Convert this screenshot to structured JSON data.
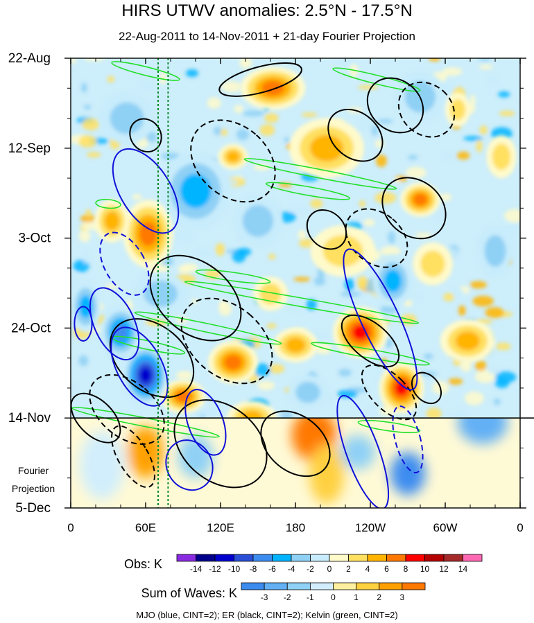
{
  "chart_data": {
    "type": "heatmap",
    "title": "HIRS UTWV anomalies: 2.5°N - 17.5°N",
    "subtitle": "22-Aug-2011 to 14-Nov-2011 + 21-day Fourier Projection",
    "x_axis": {
      "variable": "longitude",
      "range_deg_east": [
        0,
        360
      ],
      "ticks": [
        {
          "lon": 0,
          "label": "0"
        },
        {
          "lon": 60,
          "label": "60E"
        },
        {
          "lon": 120,
          "label": "120E"
        },
        {
          "lon": 180,
          "label": "180"
        },
        {
          "lon": 240,
          "label": "120W"
        },
        {
          "lon": 300,
          "label": "60W"
        },
        {
          "lon": 360,
          "label": "0"
        }
      ]
    },
    "y_axis": {
      "variable": "time",
      "range_days": [
        0,
        105
      ],
      "direction": "downward",
      "ticks": [
        {
          "day": 0,
          "label": "22-Aug"
        },
        {
          "day": 21,
          "label": "12-Sep"
        },
        {
          "day": 42,
          "label": "3-Oct"
        },
        {
          "day": 63,
          "label": "24-Oct"
        },
        {
          "day": 84,
          "label": "14-Nov"
        },
        {
          "day": 105,
          "label": "5-Dec"
        }
      ],
      "minor_tick_days": 7
    },
    "projection_label": [
      "Fourier",
      "Projection"
    ],
    "observation_end_day": 84,
    "reference_lines_lon": [
      70,
      78
    ],
    "obs_colorbar": {
      "label": "Obs: K",
      "levels": [
        -14,
        -12,
        -10,
        -8,
        -6,
        -4,
        -2,
        0,
        2,
        4,
        6,
        8,
        10,
        12,
        14
      ],
      "colors": [
        "#8a2be2",
        "#00008b",
        "#0000cd",
        "#2a4fd6",
        "#3c8cf0",
        "#00b4ff",
        "#8fd0f5",
        "#c8ecfb",
        "#fffaca",
        "#ffe060",
        "#ffb400",
        "#ff7800",
        "#ff0000",
        "#b40000",
        "#a52a2a",
        "#ff69b4"
      ]
    },
    "waves_colorbar": {
      "label": "Sum of Waves: K",
      "levels": [
        -3,
        -2,
        -1,
        0,
        1,
        2,
        3
      ],
      "colors": [
        "#3c8cf0",
        "#63b0f5",
        "#8fd0f5",
        "#d2eefc",
        "#fff0a0",
        "#ffd040",
        "#ffa000",
        "#ff7800"
      ]
    },
    "footer": "MJO (blue, CINT=2); ER (black, CINT=2); Kelvin (green, CINT=2)",
    "wave_contours": {
      "mjo": {
        "color": "blue",
        "cint": 2,
        "features": [
          {
            "lon": 60,
            "day": 31,
            "rx_deg": 20,
            "ry_days": 11,
            "tilt": -32,
            "sign": "pos"
          },
          {
            "lon": 43,
            "day": 48,
            "rx_deg": 16,
            "ry_days": 8,
            "tilt": -30,
            "sign": "neg"
          },
          {
            "lon": 35,
            "day": 62,
            "rx_deg": 16,
            "ry_days": 9,
            "tilt": -25,
            "sign": "pos"
          },
          {
            "lon": 55,
            "day": 72,
            "rx_deg": 18,
            "ry_days": 10,
            "tilt": -28,
            "sign": "pos"
          },
          {
            "lon": 108,
            "day": 85,
            "rx_deg": 14,
            "ry_days": 8,
            "tilt": -20,
            "sign": "pos"
          },
          {
            "lon": 248,
            "day": 61,
            "rx_deg": 15,
            "ry_days": 18,
            "tilt": -25,
            "sign": "pos"
          },
          {
            "lon": 234,
            "day": 92,
            "rx_deg": 13,
            "ry_days": 14,
            "tilt": -20,
            "sign": "pos"
          },
          {
            "lon": 270,
            "day": 89,
            "rx_deg": 10,
            "ry_days": 8,
            "tilt": -15,
            "sign": "neg"
          },
          {
            "lon": 95,
            "day": 95,
            "rx_deg": 18,
            "ry_days": 6,
            "tilt": -30,
            "sign": "pos"
          },
          {
            "lon": 10,
            "day": 62,
            "rx_deg": 7,
            "ry_days": 4,
            "tilt": 0,
            "sign": "pos"
          }
        ]
      },
      "er": {
        "color": "black",
        "cint": 2,
        "features": [
          {
            "lon": 152,
            "day": 5,
            "rx_deg": 34,
            "ry_days": 3,
            "tilt": -15,
            "sign": "pos"
          },
          {
            "lon": 260,
            "day": 11,
            "rx_deg": 20,
            "ry_days": 7,
            "tilt": -48,
            "sign": "pos"
          },
          {
            "lon": 285,
            "day": 12,
            "rx_deg": 20,
            "ry_days": 7,
            "tilt": -48,
            "sign": "neg"
          },
          {
            "lon": 275,
            "day": 35,
            "rx_deg": 22,
            "ry_days": 8,
            "tilt": -50,
            "sign": "pos"
          },
          {
            "lon": 245,
            "day": 42,
            "rx_deg": 20,
            "ry_days": 8,
            "tilt": -50,
            "sign": "neg"
          },
          {
            "lon": 228,
            "day": 18,
            "rx_deg": 18,
            "ry_days": 7,
            "tilt": -50,
            "sign": "pos"
          },
          {
            "lon": 205,
            "day": 40,
            "rx_deg": 14,
            "ry_days": 5,
            "tilt": -45,
            "sign": "pos"
          },
          {
            "lon": 130,
            "day": 24,
            "rx_deg": 28,
            "ry_days": 11,
            "tilt": -48,
            "sign": "neg"
          },
          {
            "lon": 100,
            "day": 56,
            "rx_deg": 28,
            "ry_days": 12,
            "tilt": -50,
            "sign": "pos"
          },
          {
            "lon": 125,
            "day": 66,
            "rx_deg": 28,
            "ry_days": 12,
            "tilt": -50,
            "sign": "neg"
          },
          {
            "lon": 65,
            "day": 70,
            "rx_deg": 26,
            "ry_days": 11,
            "tilt": -50,
            "sign": "pos"
          },
          {
            "lon": 45,
            "day": 82,
            "rx_deg": 22,
            "ry_days": 10,
            "tilt": -50,
            "sign": "neg"
          },
          {
            "lon": 20,
            "day": 84,
            "rx_deg": 14,
            "ry_days": 7,
            "tilt": -45,
            "sign": "pos"
          },
          {
            "lon": 120,
            "day": 90,
            "rx_deg": 30,
            "ry_days": 12,
            "tilt": -50,
            "sign": "pos"
          },
          {
            "lon": 240,
            "day": 66,
            "rx_deg": 14,
            "ry_days": 8,
            "tilt": -50,
            "sign": "pos"
          },
          {
            "lon": 255,
            "day": 78,
            "rx_deg": 14,
            "ry_days": 8,
            "tilt": -45,
            "sign": "neg"
          },
          {
            "lon": 285,
            "day": 77,
            "rx_deg": 10,
            "ry_days": 4,
            "tilt": -40,
            "sign": "pos"
          },
          {
            "lon": 50,
            "day": 93,
            "rx_deg": 12,
            "ry_days": 8,
            "tilt": -30,
            "sign": "neg"
          },
          {
            "lon": 180,
            "day": 90,
            "rx_deg": 22,
            "ry_days": 9,
            "tilt": -50,
            "sign": "pos"
          },
          {
            "lon": 60,
            "day": 18,
            "rx_deg": 12,
            "ry_days": 4,
            "tilt": -35,
            "sign": "pos"
          }
        ]
      },
      "kelvin": {
        "color": "green",
        "cint": 2,
        "features": [
          {
            "lon": 60,
            "day": 3,
            "rx_deg": 28,
            "ry_days": 1,
            "tilt": 14,
            "sign": "pos"
          },
          {
            "lon": 245,
            "day": 5,
            "rx_deg": 36,
            "ry_days": 1,
            "tilt": 14,
            "sign": "pos"
          },
          {
            "lon": 200,
            "day": 27,
            "rx_deg": 62,
            "ry_days": 1,
            "tilt": 11,
            "sign": "pos"
          },
          {
            "lon": 190,
            "day": 31,
            "rx_deg": 34,
            "ry_days": 1,
            "tilt": 10,
            "sign": "pos"
          },
          {
            "lon": 130,
            "day": 51,
            "rx_deg": 30,
            "ry_days": 1,
            "tilt": 8,
            "sign": "pos"
          },
          {
            "lon": 185,
            "day": 57,
            "rx_deg": 95,
            "ry_days": 1,
            "tilt": 10,
            "sign": "pos"
          },
          {
            "lon": 110,
            "day": 63,
            "rx_deg": 60,
            "ry_days": 1,
            "tilt": 12,
            "sign": "pos"
          },
          {
            "lon": 240,
            "day": 69,
            "rx_deg": 48,
            "ry_days": 1,
            "tilt": 10,
            "sign": "pos"
          },
          {
            "lon": 60,
            "day": 85,
            "rx_deg": 60,
            "ry_days": 1,
            "tilt": 11,
            "sign": "pos"
          },
          {
            "lon": 255,
            "day": 86,
            "rx_deg": 25,
            "ry_days": 1,
            "tilt": 8,
            "sign": "pos"
          },
          {
            "lon": 62,
            "day": 67,
            "rx_deg": 30,
            "ry_days": 1,
            "tilt": 12,
            "sign": "pos"
          },
          {
            "lon": 30,
            "day": 34,
            "rx_deg": 10,
            "ry_days": 1,
            "tilt": 5,
            "sign": "pos"
          }
        ]
      }
    },
    "anomaly_blobs": [
      {
        "lon": 162,
        "day": 7,
        "r_deg": 26,
        "r_days": 5,
        "value": 9
      },
      {
        "lon": 130,
        "day": 23,
        "r_deg": 12,
        "r_days": 3,
        "value": 7
      },
      {
        "lon": 205,
        "day": 21,
        "r_deg": 30,
        "r_days": 7,
        "value": 6
      },
      {
        "lon": 280,
        "day": 33,
        "r_deg": 16,
        "r_days": 4,
        "value": 8
      },
      {
        "lon": 218,
        "day": 45,
        "r_deg": 26,
        "r_days": 6,
        "value": 5
      },
      {
        "lon": 62,
        "day": 41,
        "r_deg": 20,
        "r_days": 8,
        "value": 9
      },
      {
        "lon": 33,
        "day": 38,
        "r_deg": 14,
        "r_days": 5,
        "value": 7
      },
      {
        "lon": 72,
        "day": 55,
        "r_deg": 22,
        "r_days": 5,
        "value": -5
      },
      {
        "lon": 232,
        "day": 64,
        "r_deg": 22,
        "r_days": 6,
        "value": 11
      },
      {
        "lon": 265,
        "day": 77,
        "r_deg": 18,
        "r_days": 6,
        "value": 10
      },
      {
        "lon": 130,
        "day": 71,
        "r_deg": 20,
        "r_days": 5,
        "value": 8
      },
      {
        "lon": 180,
        "day": 67,
        "r_deg": 18,
        "r_days": 4,
        "value": 6
      },
      {
        "lon": 195,
        "day": 88,
        "r_deg": 18,
        "r_days": 6,
        "value": 5
      },
      {
        "lon": 318,
        "day": 66,
        "r_deg": 22,
        "r_days": 5,
        "value": 6
      },
      {
        "lon": 90,
        "day": 79,
        "r_deg": 18,
        "r_days": 4,
        "value": 8
      },
      {
        "lon": 145,
        "day": 84,
        "r_deg": 20,
        "r_days": 4,
        "value": 7
      },
      {
        "lon": 60,
        "day": 74,
        "r_deg": 18,
        "r_days": 7,
        "value": -12
      },
      {
        "lon": 40,
        "day": 64,
        "r_deg": 16,
        "r_days": 6,
        "value": -8
      },
      {
        "lon": 258,
        "day": 52,
        "r_deg": 16,
        "r_days": 6,
        "value": -7
      },
      {
        "lon": 270,
        "day": 97,
        "r_deg": 14,
        "r_days": 5,
        "value": -6
      },
      {
        "lon": 280,
        "day": 9,
        "r_deg": 20,
        "r_days": 6,
        "value": -4
      },
      {
        "lon": 45,
        "day": 14,
        "r_deg": 22,
        "r_days": 6,
        "value": -4
      },
      {
        "lon": 100,
        "day": 31,
        "r_deg": 28,
        "r_days": 9,
        "value": -6
      },
      {
        "lon": 150,
        "day": 38,
        "r_deg": 20,
        "r_days": 6,
        "value": -4
      },
      {
        "lon": 340,
        "day": 45,
        "r_deg": 14,
        "r_days": 6,
        "value": -5
      },
      {
        "lon": 12,
        "day": 58,
        "r_deg": 12,
        "r_days": 6,
        "value": -6
      },
      {
        "lon": 330,
        "day": 85,
        "r_deg": 20,
        "r_days": 5,
        "value": -3
      },
      {
        "lon": 190,
        "day": 78,
        "r_deg": 16,
        "r_days": 4,
        "value": -5
      },
      {
        "lon": 290,
        "day": 48,
        "r_deg": 16,
        "r_days": 5,
        "value": 5
      },
      {
        "lon": 160,
        "day": 55,
        "r_deg": 14,
        "r_days": 4,
        "value": 5
      },
      {
        "lon": 345,
        "day": 23,
        "r_deg": 12,
        "r_days": 5,
        "value": 4
      },
      {
        "lon": 310,
        "day": 12,
        "r_deg": 10,
        "r_days": 4,
        "value": 5
      },
      {
        "lon": 60,
        "day": 92,
        "r_deg": 14,
        "r_days": 6,
        "value": 2
      },
      {
        "lon": 100,
        "day": 93,
        "r_deg": 14,
        "r_days": 5,
        "value": -2
      },
      {
        "lon": 205,
        "day": 97,
        "r_deg": 14,
        "r_days": 7,
        "value": 1.5
      },
      {
        "lon": 230,
        "day": 92,
        "r_deg": 14,
        "r_days": 4,
        "value": -1.5
      },
      {
        "lon": 25,
        "day": 95,
        "r_deg": 18,
        "r_days": 8,
        "value": -1
      }
    ]
  }
}
